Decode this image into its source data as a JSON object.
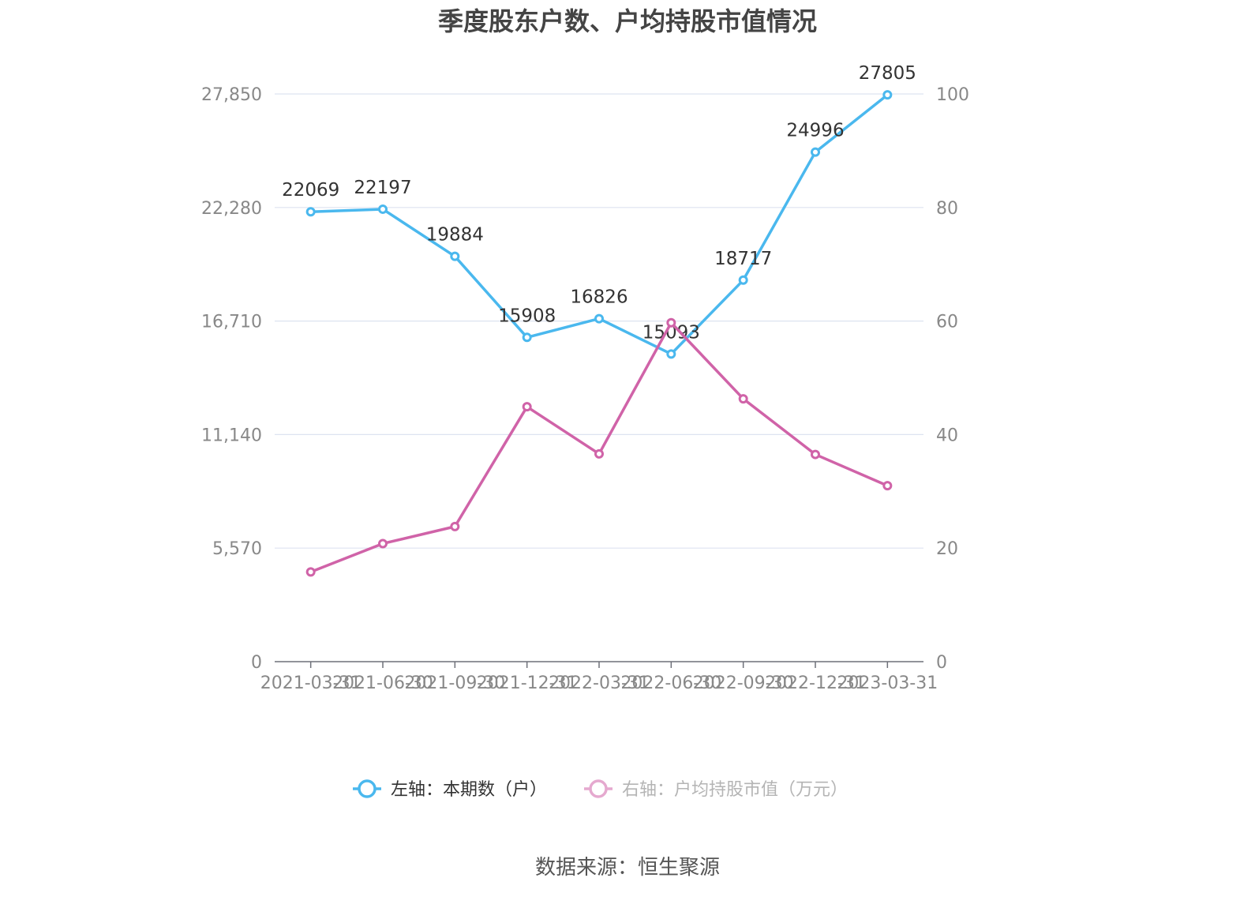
{
  "chart_data": {
    "type": "line",
    "title": "季度股东户数、户均持股市值情况",
    "categories": [
      "2021-03-31",
      "2021-06-30",
      "2021-09-30",
      "2021-12-31",
      "2022-03-31",
      "2022-06-30",
      "2022-09-30",
      "2022-12-31",
      "2023-03-31"
    ],
    "y_left": {
      "ticks": [
        "0",
        "5,570",
        "11,140",
        "16,710",
        "22,280",
        "27,850"
      ],
      "ylim": [
        0,
        27850
      ]
    },
    "y_right": {
      "ticks": [
        "0",
        "20",
        "40",
        "60",
        "80",
        "100"
      ],
      "ylim": [
        0,
        100
      ]
    },
    "series": [
      {
        "name": "左轴：本期数（户）",
        "axis": "left",
        "color": "#4ab8ee",
        "values": [
          22069,
          22197,
          19884,
          15908,
          16826,
          15093,
          18717,
          24996,
          27805
        ],
        "labels": [
          "22069",
          "22197",
          "19884",
          "15908",
          "16826",
          "15093",
          "18717",
          "24996",
          "27805"
        ]
      },
      {
        "name": "右轴：户均持股市值（万元）",
        "axis": "right",
        "color": "#d063a8",
        "values": [
          15.8,
          20.8,
          23.8,
          44.9,
          36.6,
          59.7,
          46.3,
          36.5,
          31.0
        ]
      }
    ],
    "grid": true,
    "legend_position": "bottom"
  },
  "source_text": "数据来源：恒生聚源"
}
